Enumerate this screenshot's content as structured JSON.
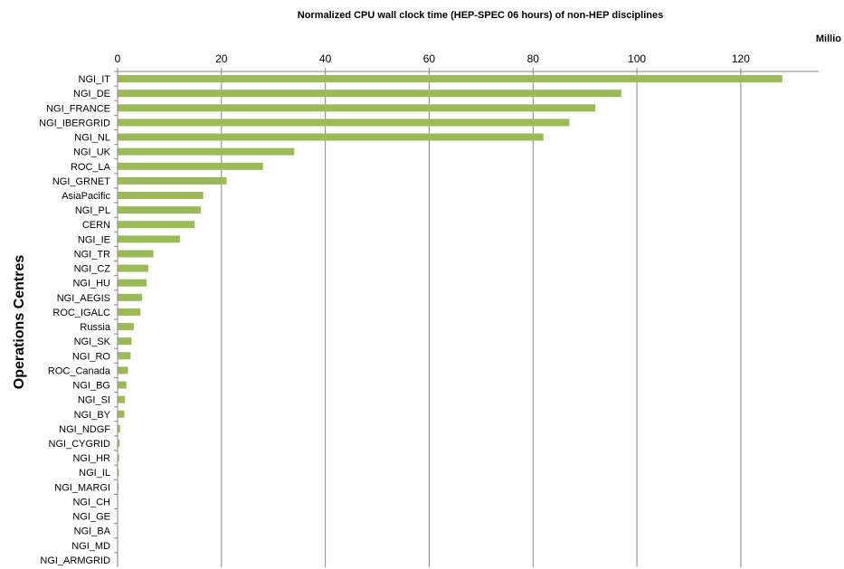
{
  "chart_data": {
    "type": "bar",
    "orientation": "horizontal",
    "title": "Normalized CPU wall clock time (HEP-SPEC 06 hours) of non-HEP disciplines",
    "ylabel": "Operations Centres",
    "xlabel": "",
    "x_unit_label": "Millio",
    "x_axis_position": "top",
    "xlim": [
      0,
      135
    ],
    "x_ticks": [
      0,
      20,
      40,
      60,
      80,
      100,
      120
    ],
    "grid": true,
    "bar_color": "#9bbb59",
    "categories": [
      "NGI_IT",
      "NGI_DE",
      "NGI_FRANCE",
      "NGI_IBERGRID",
      "NGI_NL",
      "NGI_UK",
      "ROC_LA",
      "NGI_GRNET",
      "AsiaPacific",
      "NGI_PL",
      "CERN",
      "NGI_IE",
      "NGI_TR",
      "NGI_CZ",
      "NGI_HU",
      "NGI_AEGIS",
      "ROC_IGALC",
      "Russia",
      "NGI_SK",
      "NGI_RO",
      "ROC_Canada",
      "NGI_BG",
      "NGI_SI",
      "NGI_BY",
      "NGI_NDGF",
      "NGI_CYGRID",
      "NGI_HR",
      "NGI_IL",
      "NGI_MARGI",
      "NGI_CH",
      "NGI_GE",
      "NGI_BA",
      "NGI_MD",
      "NGI_ARMGRID"
    ],
    "values": [
      128,
      97,
      92,
      87,
      82,
      34,
      28,
      21,
      16.5,
      16,
      14.8,
      12,
      6.9,
      5.9,
      5.6,
      4.7,
      4.4,
      3.1,
      2.7,
      2.5,
      2.0,
      1.7,
      1.4,
      1.3,
      0.5,
      0.4,
      0.3,
      0.25,
      0.2,
      0.1,
      0.08,
      0.06,
      0.04,
      0.03
    ]
  }
}
